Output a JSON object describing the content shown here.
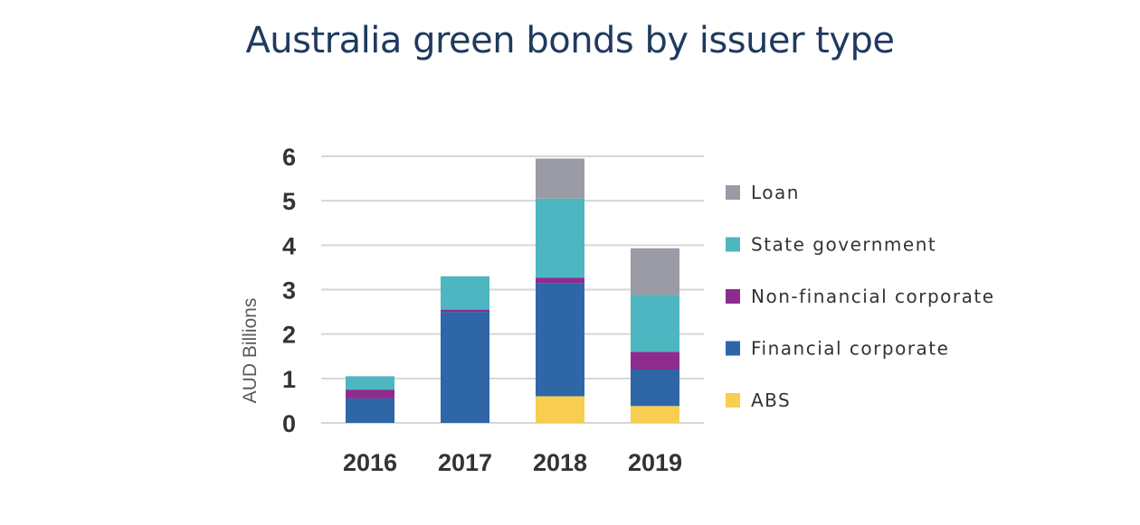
{
  "chart_data": {
    "type": "bar",
    "stacked": true,
    "title": "Australia green bonds by issuer type",
    "ylabel": "AUD Billions",
    "xlabel": "",
    "ylim": [
      0,
      6
    ],
    "yticks": [
      0,
      1,
      2,
      3,
      4,
      5,
      6
    ],
    "grid": true,
    "legend_position": "right",
    "categories": [
      "2016",
      "2017",
      "2018",
      "2019"
    ],
    "series": [
      {
        "name": "ABS",
        "color": "#f7ce4f",
        "values": [
          0,
          0,
          0.6,
          0.38
        ]
      },
      {
        "name": "Financial corporate",
        "color": "#2e66a8",
        "values": [
          0.55,
          2.5,
          2.55,
          0.82
        ]
      },
      {
        "name": "Non-financial corporate",
        "color": "#8e2c8e",
        "values": [
          0.2,
          0.05,
          0.12,
          0.4
        ]
      },
      {
        "name": "State government",
        "color": "#4db6c0",
        "values": [
          0.3,
          0.75,
          1.78,
          1.28
        ]
      },
      {
        "name": "Loan",
        "color": "#9b9ba6",
        "values": [
          0,
          0,
          0.9,
          1.05
        ]
      }
    ]
  }
}
